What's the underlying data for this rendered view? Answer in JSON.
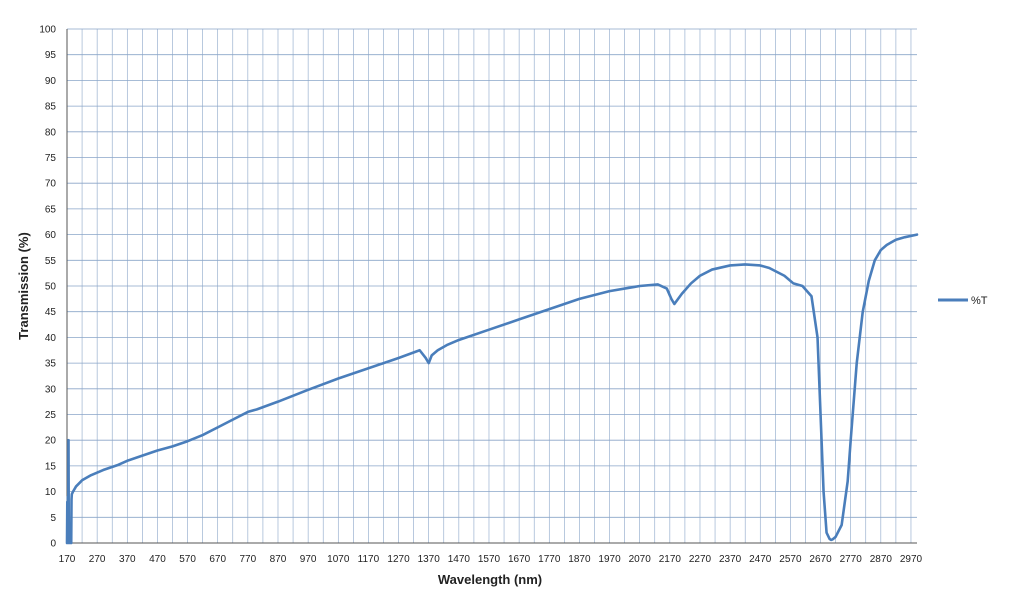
{
  "chart_data": {
    "type": "line",
    "title": "",
    "xlabel": "Wavelength (nm)",
    "ylabel": "Transmission (%)",
    "xlim": [
      170,
      2990
    ],
    "ylim": [
      0,
      100
    ],
    "x_ticks": [
      170,
      270,
      370,
      470,
      570,
      670,
      770,
      870,
      970,
      1070,
      1170,
      1270,
      1370,
      1470,
      1570,
      1670,
      1770,
      1870,
      1970,
      2070,
      2170,
      2270,
      2370,
      2470,
      2570,
      2670,
      2770,
      2870,
      2970
    ],
    "y_ticks": [
      0,
      5,
      10,
      15,
      20,
      25,
      30,
      35,
      40,
      45,
      50,
      55,
      60,
      65,
      70,
      75,
      80,
      85,
      90,
      95,
      100
    ],
    "grid": true,
    "legend_position": "right",
    "line_color": "#4a7ebb",
    "grid_color": "#8aa5c8",
    "series": [
      {
        "name": "%T",
        "x": [
          170,
          171,
          172,
          173,
          174,
          175,
          176,
          177,
          178,
          180,
          184,
          185,
          186,
          190,
          200,
          220,
          250,
          290,
          340,
          370,
          420,
          470,
          520,
          570,
          620,
          670,
          720,
          770,
          800,
          870,
          970,
          1070,
          1170,
          1270,
          1340,
          1360,
          1370,
          1380,
          1400,
          1430,
          1470,
          1570,
          1670,
          1770,
          1870,
          1970,
          2070,
          2130,
          2160,
          2175,
          2185,
          2195,
          2210,
          2240,
          2270,
          2310,
          2370,
          2420,
          2470,
          2500,
          2550,
          2580,
          2610,
          2640,
          2660,
          2670,
          2680,
          2690,
          2700,
          2705,
          2710,
          2720,
          2740,
          2760,
          2770,
          2790,
          2810,
          2830,
          2850,
          2870,
          2890,
          2920,
          2950,
          2990
        ],
        "y": [
          0,
          8,
          0,
          9,
          0,
          20,
          0,
          0,
          0,
          0,
          0,
          8.5,
          9.5,
          10,
          11,
          12.2,
          13.2,
          14.2,
          15.2,
          16,
          17,
          18,
          18.8,
          19.8,
          21,
          22.5,
          24,
          25.5,
          26,
          27.5,
          29.8,
          32,
          34,
          36,
          37.5,
          36,
          35,
          36.5,
          37.5,
          38.5,
          39.5,
          41.5,
          43.5,
          45.5,
          47.5,
          49,
          50,
          50.3,
          49.5,
          47.5,
          46.5,
          47.3,
          48.5,
          50.5,
          52,
          53.2,
          54,
          54.2,
          54,
          53.5,
          52,
          50.5,
          50,
          48,
          40,
          25,
          10,
          2,
          0.8,
          0.6,
          0.7,
          1.2,
          3.5,
          12,
          20,
          35,
          45,
          51,
          55,
          57,
          58,
          59,
          59.5,
          60
        ]
      }
    ]
  }
}
